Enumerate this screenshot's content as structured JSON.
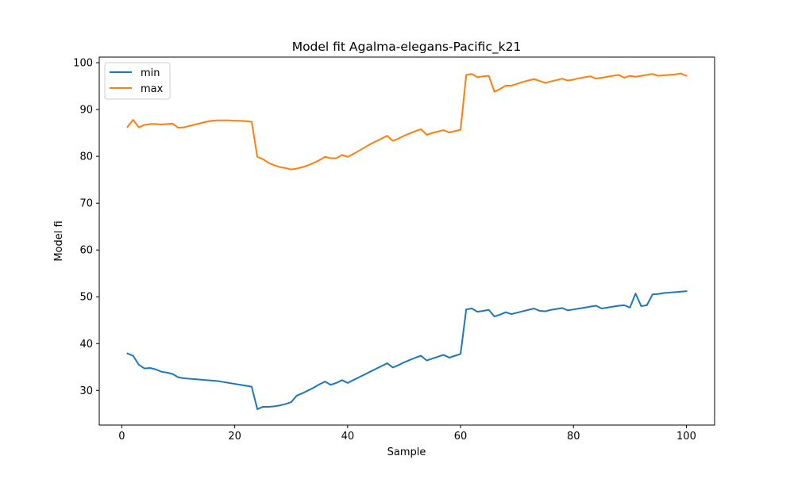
{
  "chart_data": {
    "type": "line",
    "title": "Model fit Agalma-elegans-Pacific_k21",
    "xlabel": "Sample",
    "ylabel": "Model fi",
    "xlim": [
      -4,
      105
    ],
    "ylim": [
      22.6,
      101.2
    ],
    "xticks": [
      0,
      20,
      40,
      60,
      80,
      100
    ],
    "yticks": [
      30,
      40,
      50,
      60,
      70,
      80,
      90,
      100
    ],
    "grid": false,
    "legend_position": "top-left",
    "series": [
      {
        "name": "min",
        "color": "#1f77b4",
        "x": [
          1,
          2,
          3,
          4,
          5,
          6,
          7,
          8,
          9,
          10,
          11,
          12,
          13,
          14,
          15,
          16,
          17,
          18,
          19,
          20,
          21,
          22,
          23,
          24,
          25,
          26,
          27,
          28,
          29,
          30,
          31,
          32,
          33,
          34,
          35,
          36,
          37,
          38,
          39,
          40,
          41,
          42,
          43,
          44,
          45,
          46,
          47,
          48,
          49,
          50,
          51,
          52,
          53,
          54,
          55,
          56,
          57,
          58,
          59,
          60,
          61,
          62,
          63,
          64,
          65,
          66,
          67,
          68,
          69,
          70,
          71,
          72,
          73,
          74,
          75,
          76,
          77,
          78,
          79,
          80,
          81,
          82,
          83,
          84,
          85,
          86,
          87,
          88,
          89,
          90,
          91,
          92,
          93,
          94,
          95,
          96,
          97,
          98,
          99,
          100
        ],
        "y": [
          37.9,
          37.4,
          35.5,
          34.7,
          34.8,
          34.5,
          34.0,
          33.8,
          33.5,
          32.8,
          32.6,
          32.5,
          32.4,
          32.3,
          32.2,
          32.1,
          32.0,
          31.8,
          31.6,
          31.4,
          31.2,
          31.0,
          30.8,
          26.0,
          26.5,
          26.5,
          26.6,
          26.8,
          27.1,
          27.5,
          28.9,
          29.4,
          30.0,
          30.6,
          31.3,
          31.9,
          31.2,
          31.6,
          32.2,
          31.6,
          32.2,
          32.8,
          33.4,
          34.0,
          34.6,
          35.2,
          35.8,
          34.9,
          35.4,
          36.0,
          36.5,
          37.0,
          37.4,
          36.4,
          36.8,
          37.2,
          37.6,
          37.0,
          37.4,
          37.8,
          47.3,
          47.5,
          46.8,
          47.0,
          47.2,
          45.8,
          46.2,
          46.7,
          46.3,
          46.6,
          46.9,
          47.2,
          47.5,
          47.0,
          46.9,
          47.2,
          47.4,
          47.6,
          47.1,
          47.3,
          47.5,
          47.7,
          47.9,
          48.1,
          47.5,
          47.7,
          47.9,
          48.1,
          48.2,
          47.7,
          50.7,
          48.0,
          48.2,
          50.5,
          50.6,
          50.8,
          50.9,
          51.0,
          51.1,
          51.2
        ]
      },
      {
        "name": "max",
        "color": "#ff7f0e",
        "x": [
          1,
          2,
          3,
          4,
          5,
          6,
          7,
          8,
          9,
          10,
          11,
          12,
          13,
          14,
          15,
          16,
          17,
          18,
          19,
          20,
          21,
          22,
          23,
          24,
          25,
          26,
          27,
          28,
          29,
          30,
          31,
          32,
          33,
          34,
          35,
          36,
          37,
          38,
          39,
          40,
          41,
          42,
          43,
          44,
          45,
          46,
          47,
          48,
          49,
          50,
          51,
          52,
          53,
          54,
          55,
          56,
          57,
          58,
          59,
          60,
          61,
          62,
          63,
          64,
          65,
          66,
          67,
          68,
          69,
          70,
          71,
          72,
          73,
          74,
          75,
          76,
          77,
          78,
          79,
          80,
          81,
          82,
          83,
          84,
          85,
          86,
          87,
          88,
          89,
          90,
          91,
          92,
          93,
          94,
          95,
          96,
          97,
          98,
          99,
          100
        ],
        "y": [
          86.3,
          87.8,
          86.2,
          86.7,
          86.9,
          86.9,
          86.8,
          86.9,
          87.0,
          86.1,
          86.2,
          86.5,
          86.8,
          87.1,
          87.4,
          87.6,
          87.7,
          87.7,
          87.7,
          87.6,
          87.6,
          87.5,
          87.4,
          79.9,
          79.4,
          78.6,
          78.1,
          77.7,
          77.5,
          77.2,
          77.4,
          77.7,
          78.1,
          78.6,
          79.2,
          79.9,
          79.6,
          79.6,
          80.3,
          79.9,
          80.5,
          81.2,
          81.9,
          82.6,
          83.2,
          83.8,
          84.4,
          83.3,
          83.8,
          84.4,
          84.9,
          85.4,
          85.8,
          84.6,
          85.0,
          85.3,
          85.6,
          85.1,
          85.4,
          85.7,
          97.4,
          97.6,
          96.9,
          97.1,
          97.2,
          93.8,
          94.4,
          95.1,
          95.1,
          95.5,
          95.9,
          96.2,
          96.5,
          96.1,
          95.7,
          96.0,
          96.3,
          96.6,
          96.2,
          96.4,
          96.7,
          96.9,
          97.1,
          96.6,
          96.8,
          97.0,
          97.2,
          97.4,
          96.8,
          97.2,
          97.0,
          97.2,
          97.4,
          97.6,
          97.2,
          97.3,
          97.4,
          97.5,
          97.7,
          97.2
        ]
      }
    ]
  }
}
